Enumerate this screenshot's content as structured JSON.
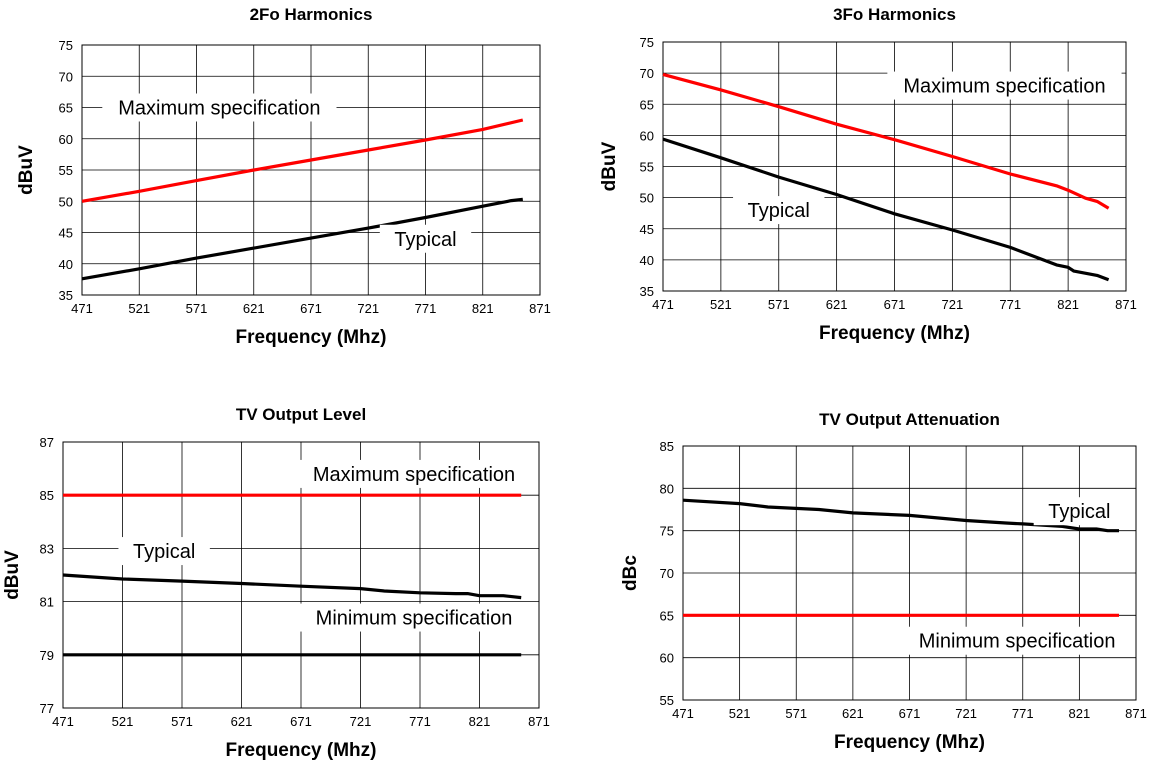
{
  "chart_data": [
    {
      "type": "line",
      "title": "2Fo Harmonics",
      "xlabel": "Frequency (Mhz)",
      "ylabel": "dBuV",
      "xlim": [
        471,
        871
      ],
      "ylim": [
        35,
        75
      ],
      "xticks": [
        471,
        521,
        571,
        621,
        671,
        721,
        771,
        821,
        871
      ],
      "yticks": [
        35,
        40,
        45,
        50,
        55,
        60,
        65,
        70,
        75
      ],
      "grid": true,
      "series": [
        {
          "name": "Maximum specification",
          "color": "#ff0000",
          "x": [
            471,
            521,
            571,
            621,
            671,
            721,
            771,
            821,
            856
          ],
          "y": [
            50.0,
            51.6,
            53.3,
            55.0,
            56.6,
            58.2,
            59.8,
            61.5,
            63.0
          ]
        },
        {
          "name": "Typical",
          "color": "#000000",
          "x": [
            471,
            521,
            571,
            621,
            671,
            721,
            771,
            821,
            846,
            856
          ],
          "y": [
            37.6,
            39.2,
            40.9,
            42.5,
            44.1,
            45.7,
            47.4,
            49.2,
            50.1,
            50.3
          ]
        }
      ],
      "labels": [
        {
          "text": "Maximum specification",
          "x": 591,
          "y": 65
        },
        {
          "text": "Typical",
          "x": 771,
          "y": 44
        }
      ]
    },
    {
      "type": "line",
      "title": "3Fo Harmonics",
      "xlabel": "Frequency (Mhz)",
      "ylabel": "dBuV",
      "xlim": [
        471,
        871
      ],
      "ylim": [
        35,
        75
      ],
      "xticks": [
        471,
        521,
        571,
        621,
        671,
        721,
        771,
        821,
        871
      ],
      "yticks": [
        35,
        40,
        45,
        50,
        55,
        60,
        65,
        70,
        75
      ],
      "grid": true,
      "series": [
        {
          "name": "Maximum specification",
          "color": "#ff0000",
          "x": [
            471,
            521,
            571,
            621,
            671,
            721,
            771,
            811,
            821,
            836,
            846,
            856
          ],
          "y": [
            69.8,
            67.3,
            64.6,
            61.8,
            59.3,
            56.6,
            53.8,
            51.9,
            51.2,
            49.9,
            49.4,
            48.3
          ]
        },
        {
          "name": "Typical",
          "color": "#000000",
          "x": [
            471,
            521,
            571,
            621,
            671,
            721,
            771,
            811,
            821,
            826,
            846,
            856
          ],
          "y": [
            59.4,
            56.4,
            53.3,
            50.5,
            47.4,
            44.8,
            42.0,
            39.2,
            38.8,
            38.2,
            37.5,
            36.8
          ]
        }
      ],
      "labels": [
        {
          "text": "Maximum specification",
          "x": 766,
          "y": 68
        },
        {
          "text": "Typical",
          "x": 571,
          "y": 48
        }
      ]
    },
    {
      "type": "line",
      "title": "TV Output Level",
      "xlabel": "Frequency (Mhz)",
      "ylabel": "dBuV",
      "xlim": [
        471,
        871
      ],
      "ylim": [
        77,
        87
      ],
      "xticks": [
        471,
        521,
        571,
        621,
        671,
        721,
        771,
        821,
        871
      ],
      "yticks": [
        77,
        79,
        81,
        83,
        85,
        87
      ],
      "grid": true,
      "series": [
        {
          "name": "Maximum specification",
          "color": "#ff0000",
          "x": [
            471,
            856
          ],
          "y": [
            85,
            85
          ]
        },
        {
          "name": "Typical",
          "color": "#000000",
          "x": [
            471,
            521,
            571,
            621,
            671,
            721,
            741,
            771,
            801,
            811,
            821,
            841,
            856
          ],
          "y": [
            82.0,
            81.85,
            81.77,
            81.68,
            81.58,
            81.49,
            81.4,
            81.33,
            81.3,
            81.3,
            81.22,
            81.22,
            81.15
          ]
        },
        {
          "name": "Minimum specification",
          "color": "#000000",
          "x": [
            471,
            856
          ],
          "y": [
            79,
            79
          ]
        }
      ],
      "labels": [
        {
          "text": "Maximum specification",
          "x": 766,
          "y": 85.8
        },
        {
          "text": "Typical",
          "x": 556,
          "y": 82.9
        },
        {
          "text": "Minimum specification",
          "x": 766,
          "y": 80.4
        }
      ]
    },
    {
      "type": "line",
      "title": "TV Output Attenuation",
      "xlabel": "Frequency (Mhz)",
      "ylabel": "dBc",
      "xlim": [
        471,
        871
      ],
      "ylim": [
        55,
        85
      ],
      "xticks": [
        471,
        521,
        571,
        621,
        671,
        721,
        771,
        821,
        871
      ],
      "yticks": [
        55,
        60,
        65,
        70,
        75,
        80,
        85
      ],
      "grid": true,
      "series": [
        {
          "name": "Typical",
          "color": "#000000",
          "x": [
            471,
            521,
            546,
            591,
            621,
            671,
            721,
            756,
            771,
            806,
            821,
            836,
            846,
            856
          ],
          "y": [
            78.6,
            78.2,
            77.8,
            77.5,
            77.1,
            76.8,
            76.2,
            75.9,
            75.8,
            75.5,
            75.2,
            75.2,
            75.0,
            75.0
          ]
        },
        {
          "name": "Minimum specification",
          "color": "#ff0000",
          "x": [
            471,
            856
          ],
          "y": [
            65,
            65
          ]
        }
      ],
      "labels": [
        {
          "text": "Typical",
          "x": 821,
          "y": 77.3
        },
        {
          "text": "Minimum specification",
          "x": 766,
          "y": 62
        }
      ]
    }
  ]
}
